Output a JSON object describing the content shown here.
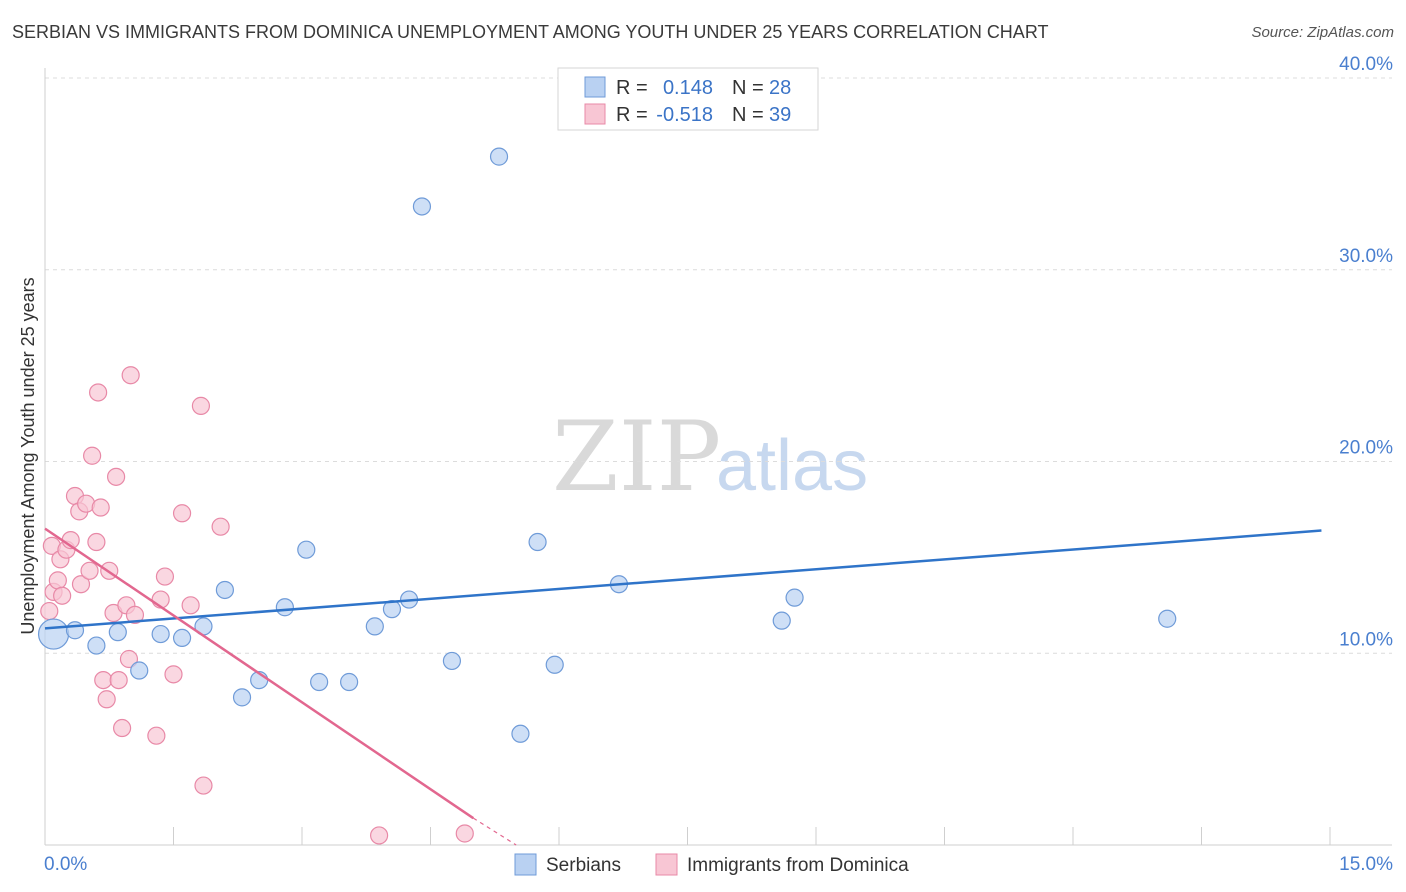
{
  "header": {
    "title": "SERBIAN VS IMMIGRANTS FROM DOMINICA UNEMPLOYMENT AMONG YOUTH UNDER 25 YEARS CORRELATION CHART",
    "source": "Source: ZipAtlas.com"
  },
  "watermark": {
    "zip": "ZIP",
    "atlas": "atlas"
  },
  "colors": {
    "serbians_fill": "#b9d1f2",
    "serbians_stroke": "#6f9bd8",
    "serbians_line": "#2f74c9",
    "dominica_fill": "#f8c6d4",
    "dominica_stroke": "#e889a7",
    "dominica_line": "#e2678f",
    "tick_label": "#4a7fcf",
    "grid": "#dcdcdc"
  },
  "legend_top": {
    "rows": [
      {
        "r_label": "R =",
        "r_value": "0.148",
        "n_label": "N =",
        "n_value": "28",
        "series": "serbians"
      },
      {
        "r_label": "R =",
        "r_value": "-0.518",
        "n_label": "N =",
        "n_value": "39",
        "series": "dominica"
      }
    ]
  },
  "chart_data": {
    "type": "scatter",
    "title": "SERBIAN VS IMMIGRANTS FROM DOMINICA UNEMPLOYMENT AMONG YOUTH UNDER 25 YEARS CORRELATION CHART",
    "xlabel": "",
    "ylabel": "Unemployment Among Youth under 25 years",
    "xlim": [
      0,
      15
    ],
    "ylim": [
      0,
      40
    ],
    "x_tick_labels": [
      "0.0%",
      "15.0%"
    ],
    "y_ticks": [
      10,
      20,
      30,
      40
    ],
    "y_tick_labels": [
      "10.0%",
      "20.0%",
      "30.0%",
      "40.0%"
    ],
    "grid": true,
    "legend_position": "bottom",
    "series": [
      {
        "name": "Serbians",
        "key": "serbians",
        "r": 0.148,
        "n": 28,
        "trend": {
          "x": [
            0.0,
            14.9
          ],
          "y": [
            11.3,
            16.4
          ]
        },
        "points": [
          {
            "x": 0.1,
            "y": 11.0,
            "big": true
          },
          {
            "x": 0.35,
            "y": 11.2
          },
          {
            "x": 0.6,
            "y": 10.4
          },
          {
            "x": 0.85,
            "y": 11.1
          },
          {
            "x": 1.1,
            "y": 9.1
          },
          {
            "x": 1.35,
            "y": 11.0
          },
          {
            "x": 1.6,
            "y": 10.8
          },
          {
            "x": 1.85,
            "y": 11.4
          },
          {
            "x": 2.1,
            "y": 13.3
          },
          {
            "x": 2.3,
            "y": 7.7
          },
          {
            "x": 2.5,
            "y": 8.6
          },
          {
            "x": 2.8,
            "y": 12.4
          },
          {
            "x": 3.05,
            "y": 15.4
          },
          {
            "x": 3.2,
            "y": 8.5
          },
          {
            "x": 3.55,
            "y": 8.5
          },
          {
            "x": 3.85,
            "y": 11.4
          },
          {
            "x": 4.05,
            "y": 12.3
          },
          {
            "x": 4.25,
            "y": 12.8
          },
          {
            "x": 4.4,
            "y": 33.3
          },
          {
            "x": 4.75,
            "y": 9.6
          },
          {
            "x": 5.3,
            "y": 35.9
          },
          {
            "x": 5.55,
            "y": 5.8
          },
          {
            "x": 5.75,
            "y": 15.8
          },
          {
            "x": 5.95,
            "y": 9.4
          },
          {
            "x": 6.7,
            "y": 13.6
          },
          {
            "x": 8.6,
            "y": 11.7
          },
          {
            "x": 8.75,
            "y": 12.9
          },
          {
            "x": 13.1,
            "y": 11.8
          }
        ]
      },
      {
        "name": "Immigrants from Dominica",
        "key": "dominica",
        "r": -0.518,
        "n": 39,
        "trend": {
          "x": [
            0.0,
            5.0
          ],
          "y": [
            16.5,
            1.4
          ]
        },
        "trend_dashed": {
          "x": [
            5.0,
            5.5
          ],
          "y": [
            1.4,
            0.0
          ]
        },
        "points": [
          {
            "x": 0.05,
            "y": 12.2
          },
          {
            "x": 0.08,
            "y": 15.6
          },
          {
            "x": 0.1,
            "y": 13.2
          },
          {
            "x": 0.15,
            "y": 13.8
          },
          {
            "x": 0.18,
            "y": 14.9
          },
          {
            "x": 0.2,
            "y": 13.0
          },
          {
            "x": 0.25,
            "y": 15.4
          },
          {
            "x": 0.3,
            "y": 15.9
          },
          {
            "x": 0.35,
            "y": 18.2
          },
          {
            "x": 0.4,
            "y": 17.4
          },
          {
            "x": 0.42,
            "y": 13.6
          },
          {
            "x": 0.48,
            "y": 17.8
          },
          {
            "x": 0.52,
            "y": 14.3
          },
          {
            "x": 0.55,
            "y": 20.3
          },
          {
            "x": 0.6,
            "y": 15.8
          },
          {
            "x": 0.62,
            "y": 23.6
          },
          {
            "x": 0.65,
            "y": 17.6
          },
          {
            "x": 0.68,
            "y": 8.6
          },
          {
            "x": 0.72,
            "y": 7.6
          },
          {
            "x": 0.75,
            "y": 14.3
          },
          {
            "x": 0.8,
            "y": 12.1
          },
          {
            "x": 0.83,
            "y": 19.2
          },
          {
            "x": 0.86,
            "y": 8.6
          },
          {
            "x": 0.9,
            "y": 6.1
          },
          {
            "x": 0.95,
            "y": 12.5
          },
          {
            "x": 0.98,
            "y": 9.7
          },
          {
            "x": 1.0,
            "y": 24.5
          },
          {
            "x": 1.05,
            "y": 12.0
          },
          {
            "x": 1.3,
            "y": 5.7
          },
          {
            "x": 1.35,
            "y": 12.8
          },
          {
            "x": 1.4,
            "y": 14.0
          },
          {
            "x": 1.5,
            "y": 8.9
          },
          {
            "x": 1.6,
            "y": 17.3
          },
          {
            "x": 1.7,
            "y": 12.5
          },
          {
            "x": 1.82,
            "y": 22.9
          },
          {
            "x": 1.85,
            "y": 3.1
          },
          {
            "x": 2.05,
            "y": 16.6
          },
          {
            "x": 3.9,
            "y": 0.5
          },
          {
            "x": 4.9,
            "y": 0.6
          }
        ]
      }
    ]
  },
  "legend_bottom": {
    "items": [
      {
        "label": "Serbians",
        "series": "serbians"
      },
      {
        "label": "Immigrants from Dominica",
        "series": "dominica"
      }
    ]
  }
}
